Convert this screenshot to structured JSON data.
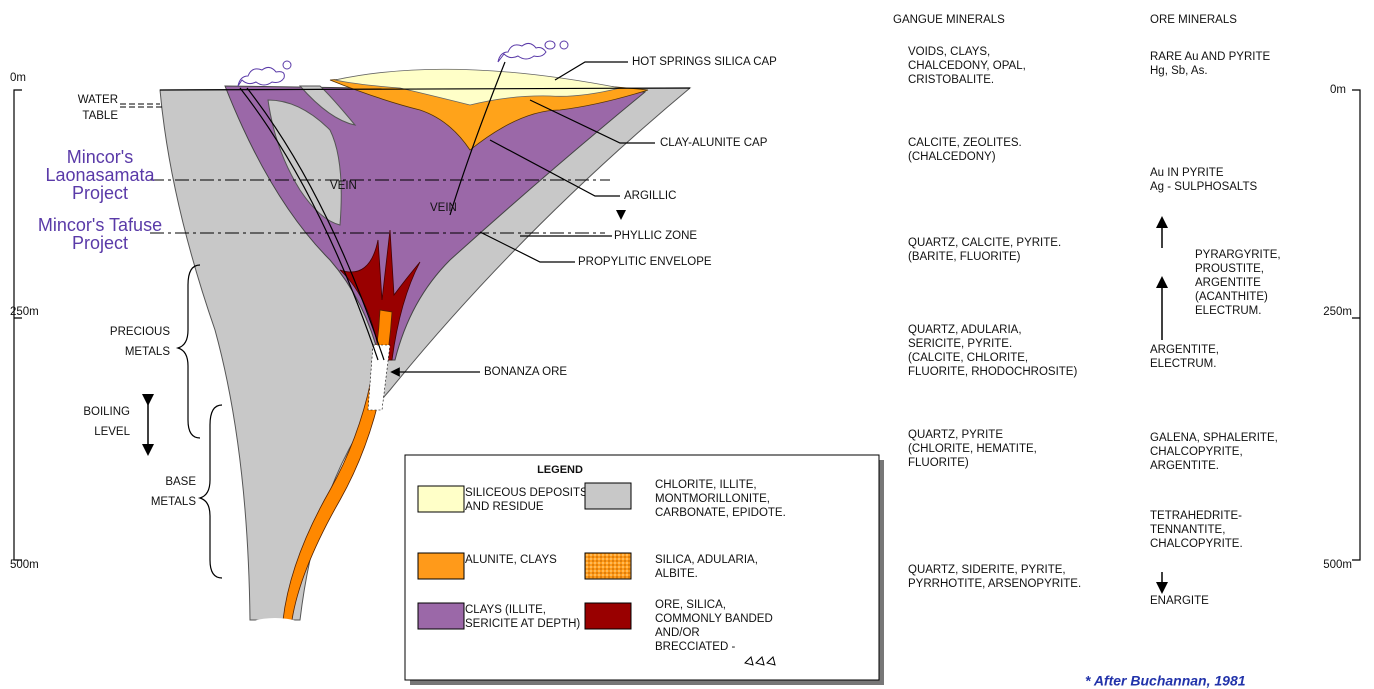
{
  "depth_scale": {
    "left": [
      "0m",
      "250m",
      "500m"
    ],
    "right": [
      "0m",
      "250m",
      "500m"
    ]
  },
  "projects": [
    [
      "Mincor's",
      "Laonasamata",
      "Project"
    ],
    [
      "Mincor's Tafuse",
      "Project"
    ]
  ],
  "left_labels": {
    "water_table": [
      "WATER",
      "TABLE"
    ],
    "precious_metals": [
      "PRECIOUS",
      "METALS"
    ],
    "boiling_level": [
      "BOILING",
      "LEVEL"
    ],
    "base_metals": [
      "BASE",
      "METALS"
    ]
  },
  "veins": [
    "VEIN",
    "VEIN"
  ],
  "zones": {
    "hot_springs_silica_cap": "HOT SPRINGS SILICA CAP",
    "clay_alunite_cap": "CLAY-ALUNITE CAP",
    "argillic": "ARGILLIC",
    "phyllic_zone": "PHYLLIC ZONE",
    "propylitic_envelope": "PROPYLITIC ENVELOPE",
    "bonanza_ore": "BONANZA ORE"
  },
  "legend": {
    "title": "LEGEND",
    "items": [
      [
        "SILICEOUS DEPOSITS",
        "AND RESIDUE"
      ],
      [
        "CHLORITE, ILLITE,",
        "MONTMORILLONITE,",
        "CARBONATE, EPIDOTE."
      ],
      [
        "ALUNITE, CLAYS"
      ],
      [
        "SILICA, ADULARIA,",
        "ALBITE."
      ],
      [
        "CLAYS (ILLITE,",
        "SERICITE AT DEPTH)"
      ],
      [
        "ORE, SILICA,",
        "COMMONLY BANDED",
        "AND/OR",
        "BRECCIATED -"
      ]
    ]
  },
  "gangue_minerals": {
    "header": "GANGUE MINERALS",
    "rows": [
      [
        "VOIDS, CLAYS,",
        "CHALCEDONY, OPAL,",
        "CRISTOBALITE."
      ],
      [
        "CALCITE, ZEOLITES.",
        "(CHALCEDONY)"
      ],
      [
        "QUARTZ, CALCITE, PYRITE.",
        "(BARITE, FLUORITE)"
      ],
      [
        "QUARTZ, ADULARIA,",
        "SERICITE, PYRITE.",
        "(CALCITE, CHLORITE,",
        "FLUORITE, RHODOCHROSITE)"
      ],
      [
        "QUARTZ, PYRITE",
        "(CHLORITE, HEMATITE,",
        "FLUORITE)"
      ],
      [
        "QUARTZ, SIDERITE, PYRITE,",
        "PYRRHOTITE, ARSENOPYRITE."
      ]
    ]
  },
  "ore_minerals": {
    "header": "ORE MINERALS",
    "rows": [
      [
        "RARE Au AND PYRITE",
        "Hg, Sb, As."
      ],
      [
        "Au IN PYRITE",
        "Ag - SULPHOSALTS"
      ],
      [
        "PYRARGYRITE,",
        "PROUSTITE,",
        "ARGENTITE",
        "(ACANTHITE)",
        "ELECTRUM."
      ],
      [
        "ARGENTITE,",
        "ELECTRUM."
      ],
      [
        "GALENA, SPHALERITE,",
        "CHALCOPYRITE,",
        "ARGENTITE."
      ],
      [
        "TETRAHEDRITE-",
        "TENNANTITE,",
        "CHALCOPYRITE."
      ],
      [
        "ENARGITE"
      ]
    ]
  },
  "footnote": "* After Buchannan, 1981"
}
